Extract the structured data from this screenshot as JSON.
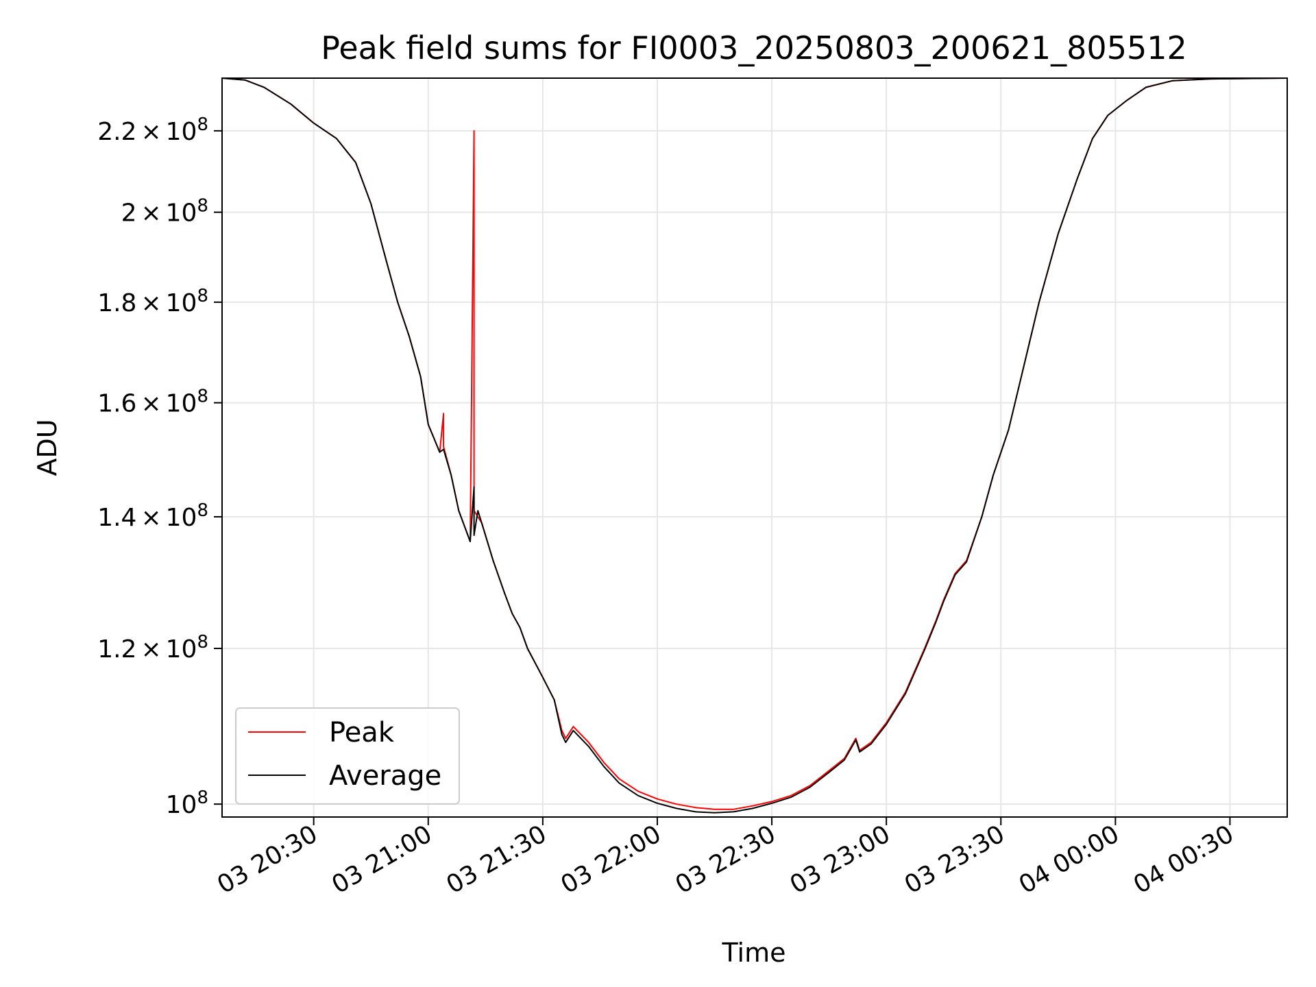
{
  "chart_data": {
    "type": "line",
    "title": "Peak field sums for FI0003_20250803_200621_805512",
    "xlabel": "Time",
    "ylabel": "ADU",
    "y_scale": "log",
    "xlim": [
      "2025-08-03 20:06",
      "2025-08-04 00:45"
    ],
    "ylim": [
      98500000,
      234000000
    ],
    "x_ticks": [
      "03 20:30",
      "03 21:00",
      "03 21:30",
      "03 22:00",
      "03 22:30",
      "03 23:00",
      "03 23:30",
      "04 00:00",
      "04 00:30"
    ],
    "y_ticks": [
      {
        "value": 100000000,
        "mantissa": "",
        "times": "",
        "exponent": "10",
        "power": "8"
      },
      {
        "value": 120000000,
        "mantissa": "1.2",
        "times": "×",
        "exponent": "10",
        "power": "8"
      },
      {
        "value": 140000000,
        "mantissa": "1.4",
        "times": "×",
        "exponent": "10",
        "power": "8"
      },
      {
        "value": 160000000,
        "mantissa": "1.6",
        "times": "×",
        "exponent": "10",
        "power": "8"
      },
      {
        "value": 180000000,
        "mantissa": "1.8",
        "times": "×",
        "exponent": "10",
        "power": "8"
      },
      {
        "value": 200000000,
        "mantissa": "2",
        "times": "×",
        "exponent": "10",
        "power": "8"
      },
      {
        "value": 220000000,
        "mantissa": "2.2",
        "times": "×",
        "exponent": "10",
        "power": "8"
      }
    ],
    "grid": true,
    "legend_position": "lower-left",
    "series": [
      {
        "name": "Peak",
        "color": "#ff0000",
        "points": [
          [
            "2025-08-03 20:06",
            234000000
          ],
          [
            "2025-08-03 20:12",
            233500000
          ],
          [
            "2025-08-03 20:17",
            231500000
          ],
          [
            "2025-08-03 20:24",
            227000000
          ],
          [
            "2025-08-03 20:30",
            222000000
          ],
          [
            "2025-08-03 20:36",
            218000000
          ],
          [
            "2025-08-03 20:41",
            212000000
          ],
          [
            "2025-08-03 20:45",
            202000000
          ],
          [
            "2025-08-03 20:49",
            189000000
          ],
          [
            "2025-08-03 20:52",
            180000000
          ],
          [
            "2025-08-03 20:55",
            173000000
          ],
          [
            "2025-08-03 20:58",
            165000000
          ],
          [
            "2025-08-03 21:00",
            156000000
          ],
          [
            "2025-08-03 21:03",
            151000000
          ],
          [
            "2025-08-03 21:04",
            158000000
          ],
          [
            "2025-08-03 21:04",
            152000000
          ],
          [
            "2025-08-03 21:06",
            147000000
          ],
          [
            "2025-08-03 21:08",
            141000000
          ],
          [
            "2025-08-03 21:11",
            136000000
          ],
          [
            "2025-08-03 21:12",
            220000000
          ],
          [
            "2025-08-03 21:12",
            141000000
          ],
          [
            "2025-08-03 21:14",
            139000000
          ],
          [
            "2025-08-03 21:17",
            133000000
          ],
          [
            "2025-08-03 21:20",
            128000000
          ],
          [
            "2025-08-03 21:22",
            125000000
          ],
          [
            "2025-08-03 21:24",
            123000000
          ],
          [
            "2025-08-03 21:26",
            120000000
          ],
          [
            "2025-08-03 21:30",
            116000000
          ],
          [
            "2025-08-03 21:33",
            113000000
          ],
          [
            "2025-08-03 21:35",
            109000000
          ],
          [
            "2025-08-03 21:36",
            108000000
          ],
          [
            "2025-08-03 21:38",
            109500000
          ],
          [
            "2025-08-03 21:42",
            107500000
          ],
          [
            "2025-08-03 21:46",
            105000000
          ],
          [
            "2025-08-03 21:50",
            103000000
          ],
          [
            "2025-08-03 21:55",
            101500000
          ],
          [
            "2025-08-03 22:00",
            100600000
          ],
          [
            "2025-08-03 22:05",
            100000000
          ],
          [
            "2025-08-03 22:10",
            99600000
          ],
          [
            "2025-08-03 22:15",
            99400000
          ],
          [
            "2025-08-03 22:20",
            99400000
          ],
          [
            "2025-08-03 22:25",
            99800000
          ],
          [
            "2025-08-03 22:30",
            100300000
          ],
          [
            "2025-08-03 22:35",
            101000000
          ],
          [
            "2025-08-03 22:40",
            102200000
          ],
          [
            "2025-08-03 22:45",
            104000000
          ],
          [
            "2025-08-03 22:49",
            105500000
          ],
          [
            "2025-08-03 22:52",
            108000000
          ],
          [
            "2025-08-03 22:53",
            106500000
          ],
          [
            "2025-08-03 22:56",
            107500000
          ],
          [
            "2025-08-03 23:00",
            110000000
          ],
          [
            "2025-08-03 23:05",
            114000000
          ],
          [
            "2025-08-03 23:10",
            120000000
          ],
          [
            "2025-08-03 23:13",
            124000000
          ],
          [
            "2025-08-03 23:15",
            127000000
          ],
          [
            "2025-08-03 23:18",
            131000000
          ],
          [
            "2025-08-03 23:21",
            133000000
          ],
          [
            "2025-08-03 23:25",
            140000000
          ],
          [
            "2025-08-03 23:28",
            147000000
          ],
          [
            "2025-08-03 23:32",
            155000000
          ],
          [
            "2025-08-03 23:36",
            167000000
          ],
          [
            "2025-08-03 23:40",
            180000000
          ],
          [
            "2025-08-03 23:45",
            195000000
          ],
          [
            "2025-08-03 23:50",
            208000000
          ],
          [
            "2025-08-03 23:54",
            218000000
          ],
          [
            "2025-08-03 23:58",
            224000000
          ],
          [
            "2025-08-04 00:03",
            228000000
          ],
          [
            "2025-08-04 00:08",
            231500000
          ],
          [
            "2025-08-04 00:15",
            233300000
          ],
          [
            "2025-08-04 00:25",
            233800000
          ],
          [
            "2025-08-04 00:45",
            234000000
          ]
        ]
      },
      {
        "name": "Average",
        "color": "#000000",
        "points": [
          [
            "2025-08-03 20:06",
            234000000
          ],
          [
            "2025-08-03 20:12",
            233500000
          ],
          [
            "2025-08-03 20:17",
            231500000
          ],
          [
            "2025-08-03 20:24",
            227000000
          ],
          [
            "2025-08-03 20:30",
            222000000
          ],
          [
            "2025-08-03 20:36",
            218000000
          ],
          [
            "2025-08-03 20:41",
            212000000
          ],
          [
            "2025-08-03 20:45",
            202000000
          ],
          [
            "2025-08-03 20:49",
            189000000
          ],
          [
            "2025-08-03 20:52",
            180000000
          ],
          [
            "2025-08-03 20:55",
            173000000
          ],
          [
            "2025-08-03 20:58",
            165000000
          ],
          [
            "2025-08-03 21:00",
            156000000
          ],
          [
            "2025-08-03 21:03",
            151000000
          ],
          [
            "2025-08-03 21:04",
            151500000
          ],
          [
            "2025-08-03 21:06",
            147000000
          ],
          [
            "2025-08-03 21:08",
            141000000
          ],
          [
            "2025-08-03 21:11",
            136000000
          ],
          [
            "2025-08-03 21:12",
            145000000
          ],
          [
            "2025-08-03 21:12",
            137000000
          ],
          [
            "2025-08-03 21:13",
            141000000
          ],
          [
            "2025-08-03 21:14",
            139000000
          ],
          [
            "2025-08-03 21:17",
            133000000
          ],
          [
            "2025-08-03 21:20",
            128000000
          ],
          [
            "2025-08-03 21:22",
            125000000
          ],
          [
            "2025-08-03 21:24",
            123000000
          ],
          [
            "2025-08-03 21:26",
            120000000
          ],
          [
            "2025-08-03 21:30",
            116000000
          ],
          [
            "2025-08-03 21:33",
            113000000
          ],
          [
            "2025-08-03 21:35",
            108500000
          ],
          [
            "2025-08-03 21:36",
            107500000
          ],
          [
            "2025-08-03 21:38",
            109000000
          ],
          [
            "2025-08-03 21:42",
            107000000
          ],
          [
            "2025-08-03 21:46",
            104500000
          ],
          [
            "2025-08-03 21:50",
            102500000
          ],
          [
            "2025-08-03 21:55",
            101000000
          ],
          [
            "2025-08-03 22:00",
            100100000
          ],
          [
            "2025-08-03 22:05",
            99500000
          ],
          [
            "2025-08-03 22:10",
            99100000
          ],
          [
            "2025-08-03 22:15",
            99000000
          ],
          [
            "2025-08-03 22:20",
            99100000
          ],
          [
            "2025-08-03 22:25",
            99500000
          ],
          [
            "2025-08-03 22:30",
            100100000
          ],
          [
            "2025-08-03 22:35",
            100800000
          ],
          [
            "2025-08-03 22:40",
            102000000
          ],
          [
            "2025-08-03 22:45",
            103800000
          ],
          [
            "2025-08-03 22:49",
            105300000
          ],
          [
            "2025-08-03 22:52",
            107800000
          ],
          [
            "2025-08-03 22:53",
            106300000
          ],
          [
            "2025-08-03 22:56",
            107300000
          ],
          [
            "2025-08-03 23:00",
            109800000
          ],
          [
            "2025-08-03 23:05",
            113800000
          ],
          [
            "2025-08-03 23:10",
            119800000
          ],
          [
            "2025-08-03 23:13",
            123800000
          ],
          [
            "2025-08-03 23:15",
            126800000
          ],
          [
            "2025-08-03 23:18",
            130800000
          ],
          [
            "2025-08-03 23:21",
            132800000
          ],
          [
            "2025-08-03 23:25",
            140000000
          ],
          [
            "2025-08-03 23:28",
            147000000
          ],
          [
            "2025-08-03 23:32",
            155000000
          ],
          [
            "2025-08-03 23:36",
            167000000
          ],
          [
            "2025-08-03 23:40",
            180000000
          ],
          [
            "2025-08-03 23:45",
            195000000
          ],
          [
            "2025-08-03 23:50",
            208000000
          ],
          [
            "2025-08-03 23:54",
            218000000
          ],
          [
            "2025-08-03 23:58",
            224000000
          ],
          [
            "2025-08-04 00:03",
            228000000
          ],
          [
            "2025-08-04 00:08",
            231500000
          ],
          [
            "2025-08-04 00:15",
            233300000
          ],
          [
            "2025-08-04 00:25",
            233800000
          ],
          [
            "2025-08-04 00:45",
            234000000
          ]
        ]
      }
    ]
  }
}
